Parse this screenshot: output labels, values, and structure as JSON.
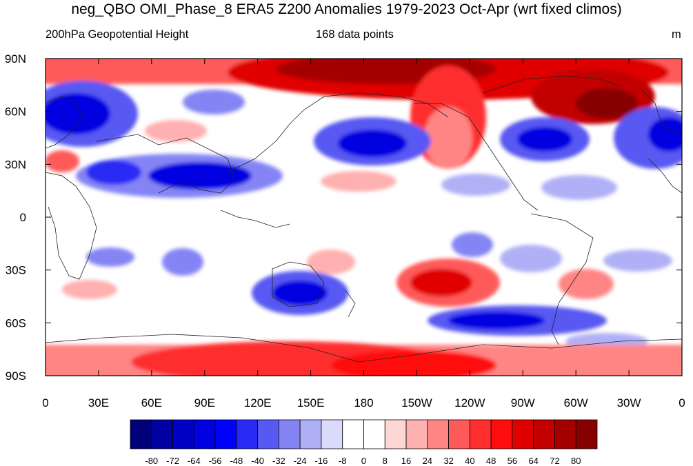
{
  "title": "neg_QBO OMI_Phase_8 ERA5 Z200 Anomalies 1979-2023 Oct-Apr (wrt fixed climos)",
  "left_string": "200hPa Geopotential Height",
  "center_string": "168 data points",
  "units": "m",
  "lat_ticks": [
    "90N",
    "60N",
    "30N",
    "0",
    "30S",
    "60S",
    "90S"
  ],
  "lon_ticks": [
    "0",
    "30E",
    "60E",
    "90E",
    "120E",
    "150E",
    "180",
    "150W",
    "120W",
    "90W",
    "60W",
    "30W",
    "0"
  ],
  "colorbar": {
    "levels": [
      "-80",
      "-72",
      "-64",
      "-56",
      "-48",
      "-40",
      "-32",
      "-24",
      "-16",
      "-8",
      "0",
      "8",
      "16",
      "24",
      "32",
      "40",
      "48",
      "56",
      "64",
      "72",
      "80"
    ],
    "colors": [
      "#00007a",
      "#0000a3",
      "#0000c4",
      "#0000e0",
      "#0000ff",
      "#2a2af5",
      "#5858f2",
      "#8484f5",
      "#b0b0f7",
      "#dadafa",
      "#ffffff",
      "#ffffff",
      "#ffd6d6",
      "#ffb0b0",
      "#ff8585",
      "#ff5a5a",
      "#ff2e2e",
      "#ff0d0d",
      "#e00000",
      "#c20000",
      "#a50000",
      "#870000"
    ]
  }
}
